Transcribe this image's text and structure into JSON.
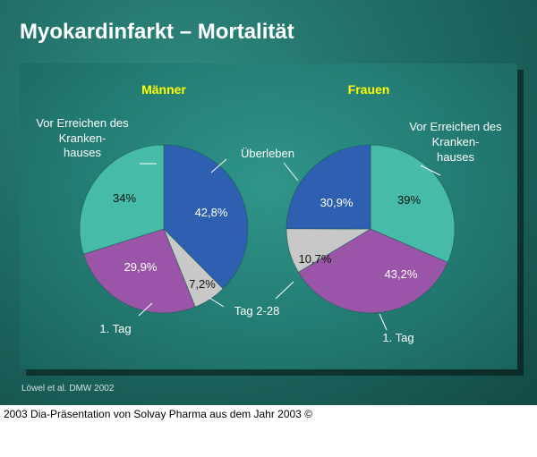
{
  "title": "Myokardinfarkt – Mortalität",
  "source": "Löwel et al. DMW 2002",
  "footer": "2003 Dia-Präsentation von Solvay Pharma aus dem Jahr 2003 ©",
  "colors": {
    "ueberleben": "#2f5fb0",
    "tag_2_28": "#c8c8c8",
    "tag_1": "#9a55a8",
    "vor_erreichen": "#45bba8",
    "headline": "#ffff00"
  },
  "chart_data": [
    {
      "type": "pie",
      "title": "Männer",
      "categories": [
        "Überleben",
        "Tag 2-28",
        "1. Tag",
        "Vor Erreichen des Kranken-hauses"
      ],
      "values": [
        42.8,
        7.2,
        29.9,
        34
      ],
      "value_labels": [
        "42,8%",
        "7,2%",
        "29,9%",
        "34%"
      ],
      "unit": "%",
      "start_angle": "12 o'clock, clockwise"
    },
    {
      "type": "pie",
      "title": "Frauen",
      "categories": [
        "Vor Erreichen des Kranken-hauses",
        "1. Tag",
        "Tag 2-28",
        "Überleben"
      ],
      "values": [
        39,
        43.2,
        10.7,
        30.9
      ],
      "value_labels": [
        "39%",
        "43,2%",
        "10,7%",
        "30,9%"
      ],
      "unit": "%",
      "start_angle": "12 o'clock, clockwise"
    }
  ],
  "callouts": {
    "vor_erreichen_lines": [
      "Vor Erreichen des",
      "Kranken-",
      "hauses"
    ],
    "ueberleben": "Überleben",
    "tag_2_28": "Tag 2-28",
    "tag_1": "1. Tag"
  }
}
